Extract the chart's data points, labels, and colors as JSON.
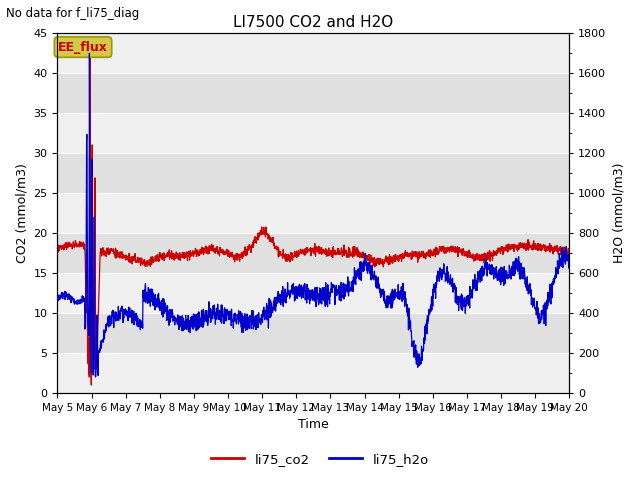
{
  "title": "LI7500 CO2 and H2O",
  "top_left_text": "No data for f_li75_diag",
  "xlabel": "Time",
  "ylabel_left": "CO2 (mmol/m3)",
  "ylabel_right": "H2O (mmol/m3)",
  "ylim_left": [
    0,
    45
  ],
  "ylim_right": [
    0,
    1800
  ],
  "yticks_left": [
    0,
    5,
    10,
    15,
    20,
    25,
    30,
    35,
    40,
    45
  ],
  "yticks_right": [
    0,
    200,
    400,
    600,
    800,
    1000,
    1200,
    1400,
    1600,
    1800
  ],
  "xtick_labels": [
    "May 5",
    "May 6",
    "May 7",
    "May 8",
    "May 9",
    "May 10",
    "May 11",
    "May 12",
    "May 13",
    "May 14",
    "May 15",
    "May 16",
    "May 17",
    "May 18",
    "May 19",
    "May 20"
  ],
  "co2_color": "#cc0000",
  "h2o_color": "#0000cc",
  "plot_bg_color": "#e8e8e8",
  "band_color_light": "#f0f0f0",
  "band_color_dark": "#e0e0e0",
  "legend_entries": [
    "li75_co2",
    "li75_h2o"
  ],
  "ee_flux_label": "EE_flux",
  "ee_flux_facecolor": "#d4c84a",
  "ee_flux_text_color": "#cc0000",
  "title_fontsize": 11,
  "axis_label_fontsize": 9,
  "tick_fontsize": 8
}
